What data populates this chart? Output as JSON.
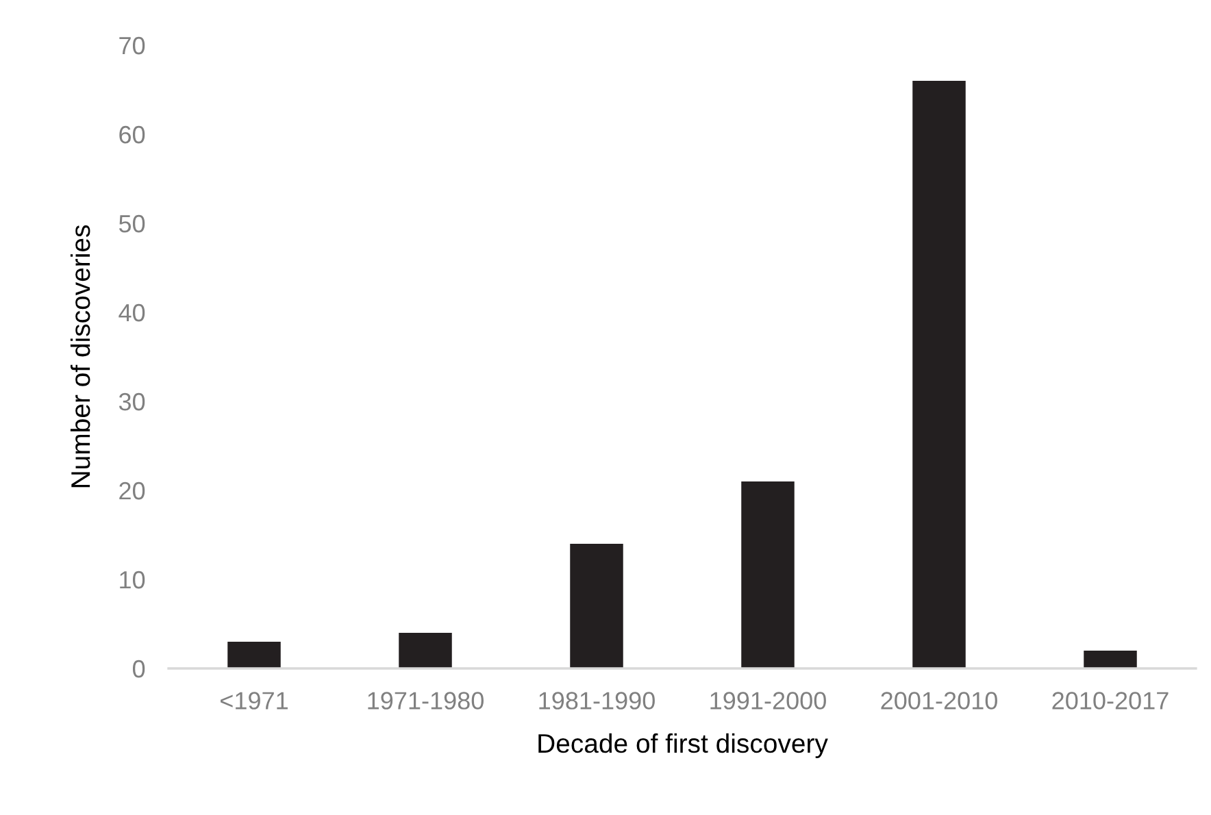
{
  "chart_data": {
    "type": "bar",
    "xlabel": "Decade of first discovery",
    "ylabel": "Number of discoveries",
    "categories": [
      "<1971",
      "1971-1980",
      "1981-1990",
      "1991-2000",
      "2001-2010",
      "2010-2017"
    ],
    "values": [
      3,
      4,
      14,
      21,
      66,
      2
    ],
    "color": "#231f20",
    "ylim": [
      0,
      70
    ],
    "yticks": [
      0,
      10,
      20,
      30,
      40,
      50,
      60,
      70
    ],
    "grid": false
  }
}
